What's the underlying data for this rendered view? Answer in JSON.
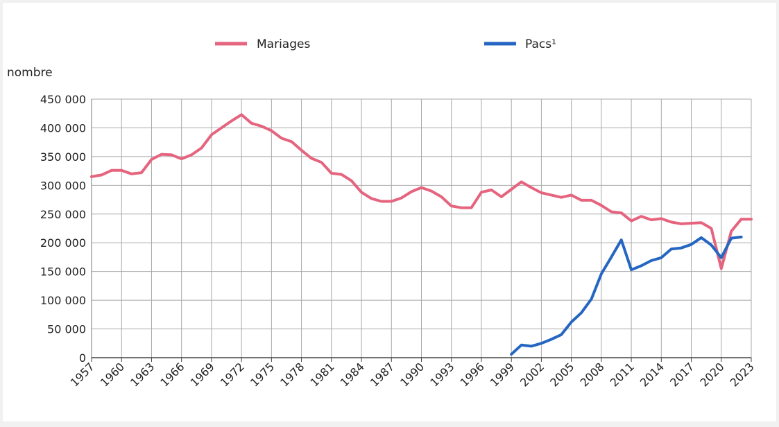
{
  "chart_data": {
    "type": "line",
    "ylabel": "nombre",
    "ylim": [
      0,
      450000
    ],
    "y_ticks": [
      0,
      50000,
      100000,
      150000,
      200000,
      250000,
      300000,
      350000,
      400000,
      450000
    ],
    "y_tick_labels": [
      "0",
      "50 000",
      "100 000",
      "150 000",
      "200 000",
      "250 000",
      "300 000",
      "350 000",
      "400 000",
      "450 000"
    ],
    "x_range": [
      1957,
      2023
    ],
    "x_tick_labels": [
      "1957",
      "1960",
      "1963",
      "1966",
      "1969",
      "1972",
      "1975",
      "1978",
      "1981",
      "1984",
      "1987",
      "1990",
      "1993",
      "1996",
      "1999",
      "2002",
      "2005",
      "2008",
      "2011",
      "2014",
      "2017",
      "2020",
      "2023"
    ],
    "grid": true,
    "legend_position": "top",
    "series": [
      {
        "name": "Mariages",
        "color": "#e5647e",
        "x": [
          1957,
          1958,
          1959,
          1960,
          1961,
          1962,
          1963,
          1964,
          1965,
          1966,
          1967,
          1968,
          1969,
          1970,
          1971,
          1972,
          1973,
          1974,
          1975,
          1976,
          1977,
          1978,
          1979,
          1980,
          1981,
          1982,
          1983,
          1984,
          1985,
          1986,
          1987,
          1988,
          1989,
          1990,
          1991,
          1992,
          1993,
          1994,
          1995,
          1996,
          1997,
          1998,
          1999,
          2000,
          2001,
          2002,
          2003,
          2004,
          2005,
          2006,
          2007,
          2008,
          2009,
          2010,
          2011,
          2012,
          2013,
          2014,
          2015,
          2016,
          2017,
          2018,
          2019,
          2020,
          2021,
          2022,
          2023
        ],
        "values": [
          315000,
          318000,
          326000,
          326000,
          320000,
          322000,
          345000,
          354000,
          353000,
          346000,
          353000,
          365000,
          388000,
          400000,
          412000,
          423000,
          408000,
          403000,
          395000,
          382000,
          376000,
          361000,
          347000,
          340000,
          321000,
          319000,
          308000,
          288000,
          277000,
          272000,
          272000,
          278000,
          289000,
          296000,
          290000,
          280000,
          264000,
          261000,
          261000,
          288000,
          292000,
          280000,
          293000,
          306000,
          296000,
          287000,
          283000,
          279000,
          283000,
          274000,
          274000,
          265000,
          254000,
          252000,
          238000,
          246000,
          240000,
          242000,
          236000,
          233000,
          234000,
          235000,
          225000,
          155000,
          220000,
          241000,
          241000
        ]
      },
      {
        "name": "Pacs¹",
        "color": "#2566c2",
        "x": [
          1999,
          2000,
          2001,
          2002,
          2003,
          2004,
          2005,
          2006,
          2007,
          2008,
          2009,
          2010,
          2011,
          2012,
          2013,
          2014,
          2015,
          2016,
          2017,
          2018,
          2019,
          2020,
          2021,
          2022
        ],
        "values": [
          6000,
          22000,
          20000,
          25000,
          32000,
          40000,
          62000,
          78000,
          102000,
          146000,
          175000,
          205000,
          153000,
          160000,
          169000,
          174000,
          189000,
          191000,
          197000,
          209000,
          196000,
          174000,
          208000,
          210000
        ]
      }
    ]
  }
}
